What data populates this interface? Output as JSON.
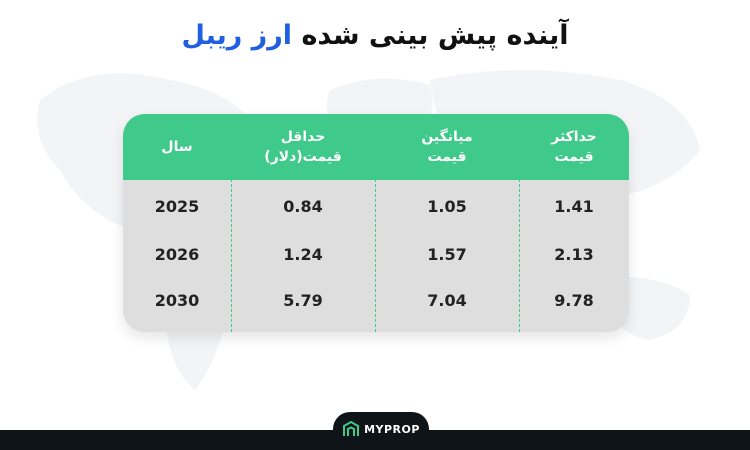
{
  "title": {
    "main": "آینده پیش بینی شده",
    "highlight": "ارز ریبل"
  },
  "table": {
    "headers": [
      {
        "line1": "سال",
        "line2": ""
      },
      {
        "line1": "حداقل",
        "line2": "قیمت(دلار)"
      },
      {
        "line1": "میانگین",
        "line2": "قیمت"
      },
      {
        "line1": "حداکثر",
        "line2": "قیمت"
      }
    ],
    "rows": [
      {
        "year": "2025",
        "min": "0.84",
        "avg": "1.05",
        "max": "1.41"
      },
      {
        "year": "2026",
        "min": "1.24",
        "avg": "1.57",
        "max": "2.13"
      },
      {
        "year": "2030",
        "min": "5.79",
        "avg": "7.04",
        "max": "9.78"
      }
    ]
  },
  "brand": {
    "name": "MYPROP",
    "icon": "myprop-logo-icon",
    "accent": "#3fc98a",
    "title_highlight_color": "#1f5fe0",
    "footer_color": "#0f1418"
  }
}
